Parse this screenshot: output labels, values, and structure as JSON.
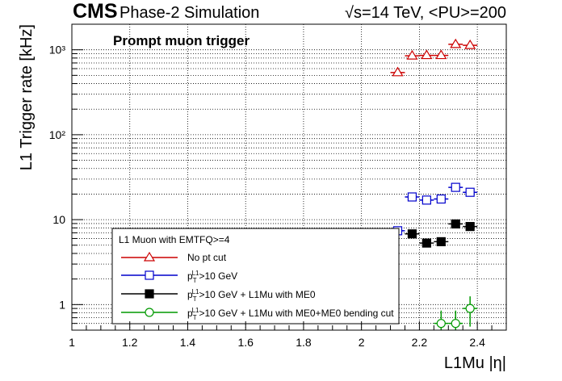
{
  "header": {
    "experiment": "CMS",
    "status": "Phase-2 Simulation",
    "energy": "√s=14 TeV, <PU>=200"
  },
  "annotation": "Prompt muon trigger",
  "legend": {
    "title": "L1 Muon with EMTFQ>=4",
    "position": "bottom-left"
  },
  "chart_data": {
    "type": "scatter",
    "title": "",
    "xlabel": "L1Mu |η|",
    "ylabel": "L1 Trigger rate [kHz]",
    "xlim": [
      1.0,
      2.5
    ],
    "ylim": [
      0.5,
      2000
    ],
    "yscale": "log",
    "grid": true,
    "x_ticks": [
      "1",
      "1.2",
      "1.4",
      "1.6",
      "1.8",
      "2",
      "2.2",
      "2.4"
    ],
    "y_ticks": [
      "1",
      "10",
      "10²",
      "10³"
    ],
    "x_bin_halfwidth": 0.025,
    "series": [
      {
        "name": "No pt cut",
        "color": "#cc0000",
        "marker": "open-triangle",
        "x": [
          2.125,
          2.175,
          2.225,
          2.275,
          2.325,
          2.375
        ],
        "y": [
          540,
          850,
          860,
          860,
          1160,
          1130
        ],
        "yerr": [
          0,
          0,
          0,
          0,
          0,
          0
        ]
      },
      {
        "name": "p_T^L1>10 GeV",
        "color": "#0000cc",
        "marker": "open-square",
        "x": [
          2.125,
          2.175,
          2.225,
          2.275,
          2.325,
          2.375
        ],
        "y": [
          7.4,
          18.5,
          17.0,
          17.5,
          24.0,
          21.0
        ],
        "yerr": [
          0,
          0,
          0,
          0,
          0,
          0
        ]
      },
      {
        "name": "p_T^L1>10 GeV + L1Mu with ME0",
        "color": "#000000",
        "marker": "filled-square",
        "x": [
          2.175,
          2.225,
          2.275,
          2.325,
          2.375
        ],
        "y": [
          6.8,
          5.3,
          5.5,
          8.9,
          8.3
        ],
        "yerr": [
          0,
          0.4,
          0.4,
          0.6,
          0.5
        ]
      },
      {
        "name": "p_T^L1>10 GeV + L1Mu with ME0+ME0 bending cut",
        "color": "#009900",
        "marker": "open-circle",
        "x": [
          2.275,
          2.325,
          2.375
        ],
        "y": [
          0.6,
          0.6,
          0.9
        ],
        "yerr": [
          0.25,
          0.25,
          0.35
        ]
      }
    ]
  }
}
